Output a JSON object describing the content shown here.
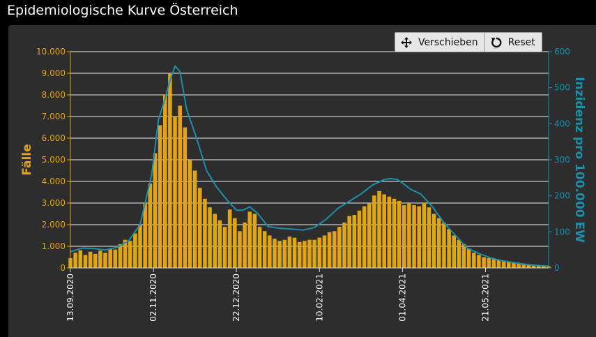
{
  "window": {
    "title": "Epidemiologische Kurve Österreich"
  },
  "toolbar": {
    "pan_label": "Verschieben",
    "reset_label": "Reset"
  },
  "colors": {
    "bars": "#e0a514",
    "incidence_line": "#1b8fac",
    "left_axis": "#e0a514",
    "right_axis": "#1b8fac",
    "grid": "#f0f0f0",
    "panel": "#2d2d2d"
  },
  "chart_data": {
    "type": "bar",
    "xlabel": "",
    "ylabel": "Fälle",
    "y2label": "Inzidenz pro 100.000 EW",
    "ylim": [
      0,
      10000
    ],
    "y2lim": [
      0,
      600
    ],
    "yticks": [
      "0",
      "1.000",
      "2.000",
      "3.000",
      "4.000",
      "5.000",
      "6.000",
      "7.000",
      "8.000",
      "9.000",
      "10.000"
    ],
    "y2ticks": [
      "0",
      "100",
      "200",
      "300",
      "400",
      "500",
      "600"
    ],
    "x_start": "2020-09-13",
    "x_end": "2021-06-28",
    "xticks": [
      "13.09.2020",
      "02.11.2020",
      "22.12.2020",
      "10.02.2021",
      "01.04.2021",
      "21.05.2021"
    ],
    "grid": true,
    "series": [
      {
        "name": "Fälle",
        "type": "bar",
        "axis": "left",
        "x": [
          "2020-09-13",
          "2020-09-16",
          "2020-09-19",
          "2020-09-22",
          "2020-09-25",
          "2020-09-28",
          "2020-10-01",
          "2020-10-04",
          "2020-10-07",
          "2020-10-10",
          "2020-10-13",
          "2020-10-16",
          "2020-10-19",
          "2020-10-22",
          "2020-10-25",
          "2020-10-28",
          "2020-10-31",
          "2020-11-03",
          "2020-11-06",
          "2020-11-09",
          "2020-11-12",
          "2020-11-15",
          "2020-11-18",
          "2020-11-21",
          "2020-11-24",
          "2020-11-27",
          "2020-11-30",
          "2020-12-03",
          "2020-12-06",
          "2020-12-09",
          "2020-12-12",
          "2020-12-15",
          "2020-12-18",
          "2020-12-21",
          "2020-12-24",
          "2020-12-27",
          "2020-12-30",
          "2021-01-02",
          "2021-01-05",
          "2021-01-08",
          "2021-01-11",
          "2021-01-14",
          "2021-01-17",
          "2021-01-20",
          "2021-01-23",
          "2021-01-26",
          "2021-01-29",
          "2021-02-01",
          "2021-02-04",
          "2021-02-07",
          "2021-02-10",
          "2021-02-13",
          "2021-02-16",
          "2021-02-19",
          "2021-02-22",
          "2021-02-25",
          "2021-02-28",
          "2021-03-03",
          "2021-03-06",
          "2021-03-09",
          "2021-03-12",
          "2021-03-15",
          "2021-03-18",
          "2021-03-21",
          "2021-03-24",
          "2021-03-27",
          "2021-03-30",
          "2021-04-02",
          "2021-04-05",
          "2021-04-08",
          "2021-04-11",
          "2021-04-14",
          "2021-04-17",
          "2021-04-20",
          "2021-04-23",
          "2021-04-26",
          "2021-04-29",
          "2021-05-02",
          "2021-05-05",
          "2021-05-08",
          "2021-05-11",
          "2021-05-14",
          "2021-05-17",
          "2021-05-20",
          "2021-05-23",
          "2021-05-26",
          "2021-05-29",
          "2021-06-01",
          "2021-06-04",
          "2021-06-07",
          "2021-06-10",
          "2021-06-13",
          "2021-06-16",
          "2021-06-19",
          "2021-06-22",
          "2021-06-25",
          "2021-06-28"
        ],
        "values": [
          450,
          700,
          820,
          600,
          750,
          650,
          800,
          700,
          900,
          850,
          1100,
          1300,
          1250,
          1600,
          2000,
          3000,
          3900,
          5300,
          6600,
          8000,
          9000,
          7000,
          7500,
          6500,
          5000,
          4500,
          3700,
          3200,
          2800,
          2500,
          2200,
          1900,
          2700,
          2300,
          1700,
          2100,
          2600,
          2500,
          1900,
          1700,
          1500,
          1350,
          1250,
          1300,
          1450,
          1400,
          1200,
          1250,
          1300,
          1300,
          1400,
          1500,
          1650,
          1700,
          1900,
          2100,
          2400,
          2450,
          2650,
          2850,
          3000,
          3350,
          3550,
          3400,
          3300,
          3200,
          3100,
          2900,
          3000,
          2900,
          2850,
          3000,
          2800,
          2500,
          2300,
          2100,
          1800,
          1500,
          1300,
          1100,
          900,
          700,
          600,
          500,
          450,
          400,
          380,
          330,
          300,
          250,
          220,
          170,
          140,
          110,
          100,
          90,
          80
        ]
      },
      {
        "name": "Inzidenz pro 100.000 EW",
        "type": "line",
        "axis": "right",
        "x": [
          "2020-09-13",
          "2020-09-20",
          "2020-09-27",
          "2020-10-04",
          "2020-10-11",
          "2020-10-18",
          "2020-10-25",
          "2020-11-01",
          "2020-11-05",
          "2020-11-09",
          "2020-11-12",
          "2020-11-15",
          "2020-11-18",
          "2020-11-22",
          "2020-11-28",
          "2020-12-04",
          "2020-12-10",
          "2020-12-16",
          "2020-12-22",
          "2020-12-26",
          "2020-12-30",
          "2021-01-04",
          "2021-01-10",
          "2021-01-17",
          "2021-01-24",
          "2021-01-31",
          "2021-02-07",
          "2021-02-14",
          "2021-02-21",
          "2021-02-28",
          "2021-03-07",
          "2021-03-14",
          "2021-03-21",
          "2021-03-25",
          "2021-03-29",
          "2021-04-02",
          "2021-04-06",
          "2021-04-12",
          "2021-04-19",
          "2021-04-26",
          "2021-05-03",
          "2021-05-10",
          "2021-05-17",
          "2021-05-24",
          "2021-05-31",
          "2021-06-07",
          "2021-06-14",
          "2021-06-21",
          "2021-06-28"
        ],
        "values": [
          45,
          55,
          54,
          50,
          57,
          75,
          120,
          260,
          410,
          470,
          520,
          560,
          545,
          440,
          360,
          270,
          225,
          190,
          160,
          160,
          170,
          150,
          115,
          110,
          108,
          105,
          112,
          135,
          165,
          185,
          205,
          230,
          245,
          248,
          245,
          232,
          218,
          205,
          170,
          125,
          90,
          55,
          40,
          28,
          20,
          15,
          10,
          7,
          5
        ]
      }
    ]
  }
}
